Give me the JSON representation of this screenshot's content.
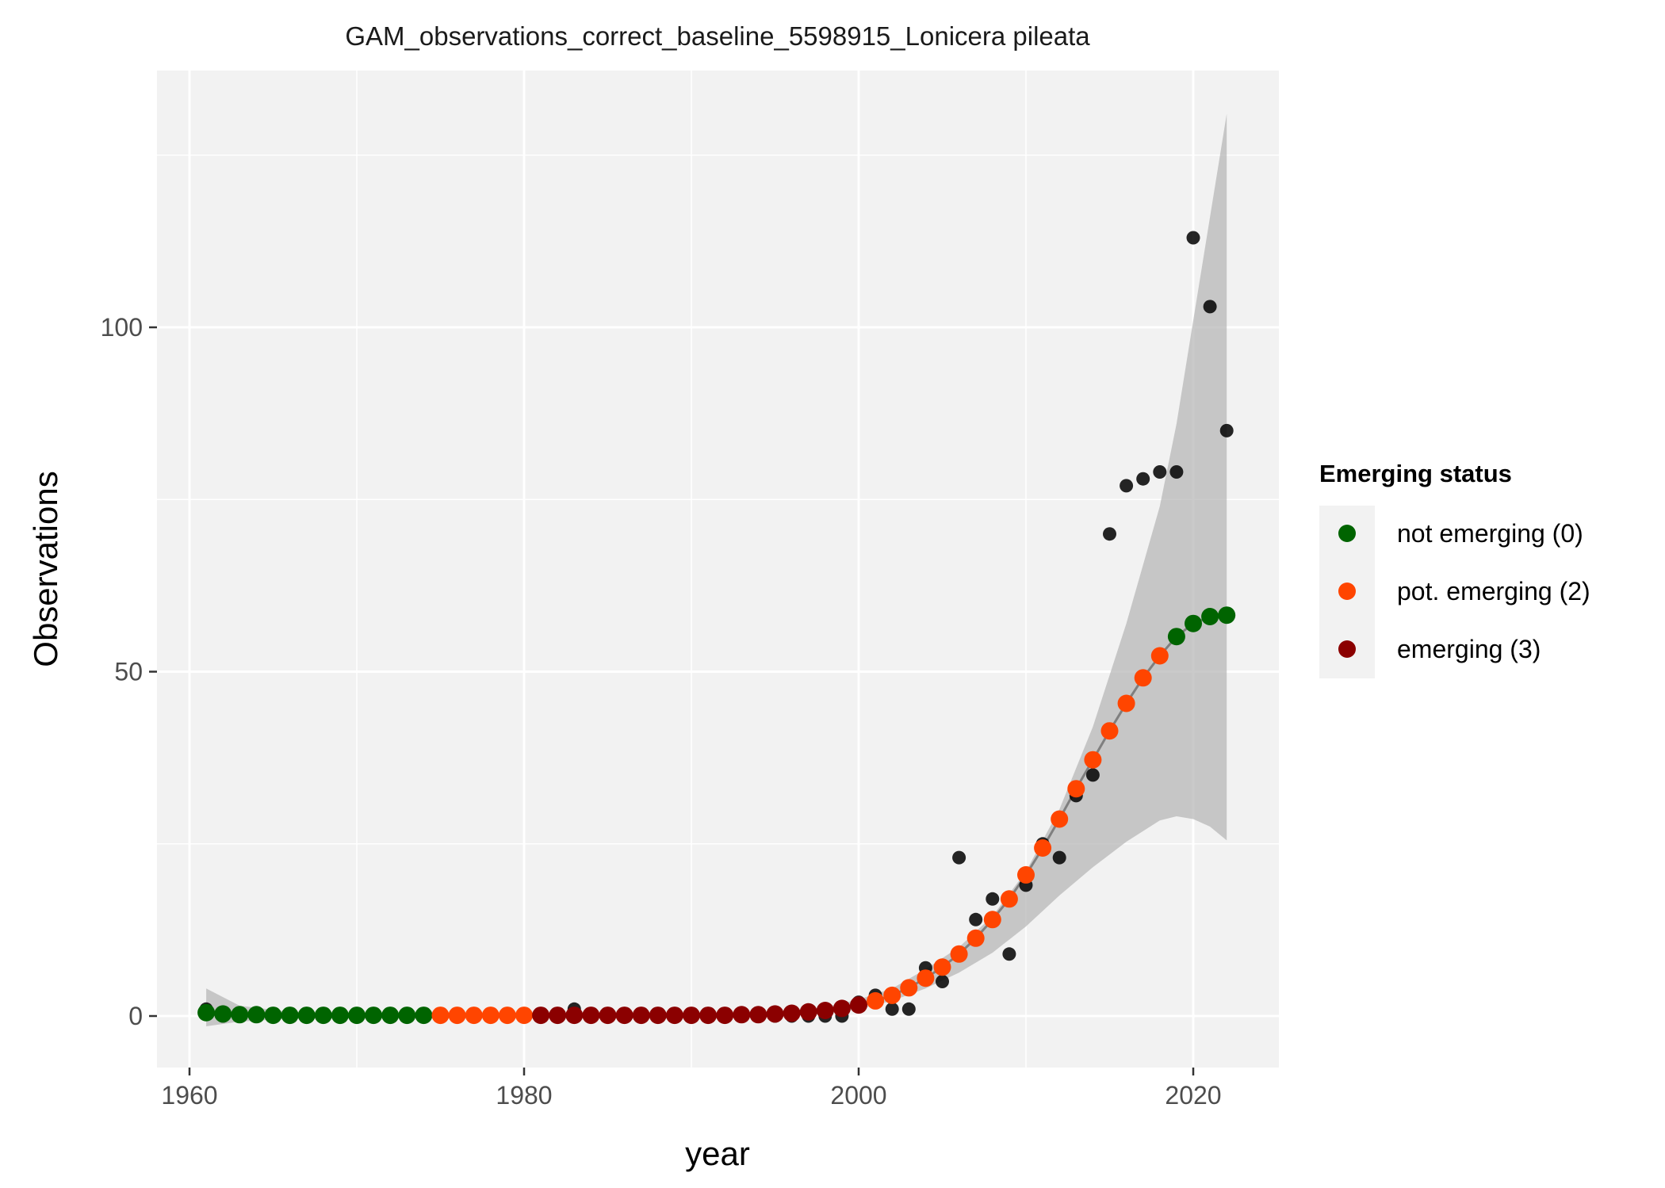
{
  "chart_data": {
    "type": "scatter",
    "title": "GAM_observations_correct_baseline_5598915_Lonicera pileata",
    "xlabel": "year",
    "ylabel": "Observations",
    "xlim": [
      1960,
      2022
    ],
    "ylim": [
      0,
      130
    ],
    "x_ticks": [
      1960,
      1980,
      2000,
      2020
    ],
    "y_ticks": [
      0,
      50,
      100
    ],
    "grid": true,
    "legend": {
      "title": "Emerging status",
      "placement": "right",
      "entries": [
        {
          "label": "not emerging (0)",
          "color": "#006400"
        },
        {
          "label": "pot. emerging (2)",
          "color": "#FF4500"
        },
        {
          "label": "emerging (3)",
          "color": "#8B0000"
        }
      ]
    },
    "observed": {
      "color": "#000000",
      "x": [
        1961,
        1962,
        1963,
        1964,
        1965,
        1966,
        1967,
        1968,
        1969,
        1970,
        1971,
        1972,
        1973,
        1974,
        1975,
        1976,
        1977,
        1978,
        1979,
        1980,
        1981,
        1982,
        1983,
        1984,
        1985,
        1986,
        1987,
        1988,
        1989,
        1990,
        1991,
        1992,
        1993,
        1994,
        1995,
        1996,
        1997,
        1998,
        1999,
        2000,
        2001,
        2002,
        2003,
        2004,
        2005,
        2006,
        2007,
        2008,
        2009,
        2010,
        2011,
        2012,
        2013,
        2014,
        2015,
        2016,
        2017,
        2018,
        2019,
        2020,
        2021,
        2022
      ],
      "y": [
        1,
        0,
        0,
        0,
        0,
        0,
        0,
        0,
        0,
        0,
        0,
        0,
        0,
        0,
        0,
        0,
        0,
        0,
        0,
        0,
        0,
        0,
        1,
        0,
        0,
        0,
        0,
        0,
        0,
        0,
        0,
        0,
        0,
        0,
        0,
        0,
        0,
        0,
        0,
        2,
        3,
        1,
        1,
        7,
        5,
        23,
        14,
        17,
        9,
        19,
        25,
        23,
        32,
        35,
        70,
        77,
        78,
        79,
        79,
        113,
        103,
        85
      ]
    },
    "fitted": {
      "x": [
        1961,
        1962,
        1963,
        1964,
        1965,
        1966,
        1967,
        1968,
        1969,
        1970,
        1971,
        1972,
        1973,
        1974,
        1975,
        1976,
        1977,
        1978,
        1979,
        1980,
        1981,
        1982,
        1983,
        1984,
        1985,
        1986,
        1987,
        1988,
        1989,
        1990,
        1991,
        1992,
        1993,
        1994,
        1995,
        1996,
        1997,
        1998,
        1999,
        2000,
        2001,
        2002,
        2003,
        2004,
        2005,
        2006,
        2007,
        2008,
        2009,
        2010,
        2011,
        2012,
        2013,
        2014,
        2015,
        2016,
        2017,
        2018,
        2019,
        2020,
        2021,
        2022
      ],
      "y": [
        0.5,
        0.3,
        0.2,
        0.2,
        0.1,
        0.1,
        0.1,
        0.1,
        0.1,
        0.1,
        0.1,
        0.1,
        0.1,
        0.1,
        0.1,
        0.1,
        0.1,
        0.1,
        0.1,
        0.1,
        0.1,
        0.1,
        0.1,
        0.1,
        0.1,
        0.1,
        0.1,
        0.1,
        0.1,
        0.1,
        0.1,
        0.1,
        0.2,
        0.2,
        0.3,
        0.4,
        0.6,
        0.8,
        1.1,
        1.6,
        2.2,
        3.0,
        4.1,
        5.5,
        7.1,
        9.0,
        11.3,
        14.0,
        17.0,
        20.5,
        24.4,
        28.6,
        33.0,
        37.2,
        41.4,
        45.4,
        49.1,
        52.3,
        55.1,
        57.0,
        58.0,
        58.2
      ],
      "status": [
        0,
        0,
        0,
        0,
        0,
        0,
        0,
        0,
        0,
        0,
        0,
        0,
        0,
        0,
        2,
        2,
        2,
        2,
        2,
        2,
        3,
        3,
        3,
        3,
        3,
        3,
        3,
        3,
        3,
        3,
        3,
        3,
        3,
        3,
        3,
        3,
        3,
        3,
        3,
        3,
        2,
        2,
        2,
        2,
        2,
        2,
        2,
        2,
        2,
        2,
        2,
        2,
        2,
        2,
        2,
        2,
        2,
        2,
        0,
        0,
        0,
        0
      ],
      "line_color": "#7f7f7f"
    },
    "confidence_band": {
      "color": "#b3b3b3",
      "x": [
        1961,
        1963,
        1966,
        1970,
        1975,
        1980,
        1985,
        1990,
        1995,
        1998,
        2000,
        2002,
        2004,
        2006,
        2008,
        2010,
        2012,
        2014,
        2016,
        2018,
        2019,
        2020,
        2021,
        2022
      ],
      "lower": [
        -1.5,
        -0.8,
        -0.4,
        -0.3,
        -0.3,
        -0.3,
        -0.3,
        -0.3,
        -0.1,
        0.3,
        1.0,
        2.2,
        4.0,
        6.3,
        9.2,
        13.0,
        17.5,
        21.6,
        25.3,
        28.4,
        29.0,
        28.6,
        27.5,
        25.5
      ],
      "upper": [
        4.0,
        1.5,
        0.6,
        0.4,
        0.4,
        0.4,
        0.4,
        0.4,
        0.6,
        1.3,
        2.4,
        4.0,
        6.8,
        10.0,
        14.5,
        21.0,
        30.0,
        42.0,
        57.0,
        74.0,
        86.0,
        101.0,
        116.0,
        131.0
      ]
    }
  }
}
